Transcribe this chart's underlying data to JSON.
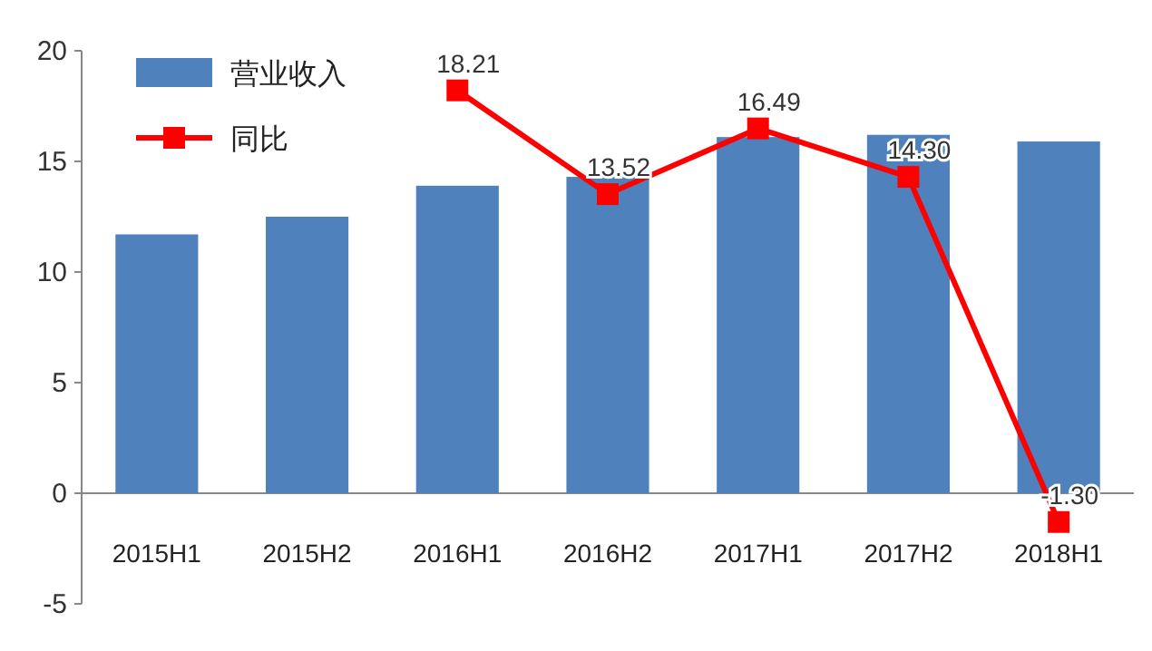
{
  "chart_data": {
    "type": "bar",
    "categories": [
      "2015H1",
      "2015H2",
      "2016H1",
      "2016H2",
      "2017H1",
      "2017H2",
      "2018H1"
    ],
    "series": [
      {
        "name": "营业收入",
        "color": "#4f81bd",
        "values": [
          11.7,
          12.5,
          13.9,
          14.3,
          16.1,
          16.2,
          15.9
        ]
      },
      {
        "name": "同比",
        "type": "line",
        "color": "#ff0000",
        "marker": "square",
        "values": [
          null,
          null,
          18.21,
          13.52,
          16.49,
          14.3,
          -1.3
        ],
        "value_labels": [
          null,
          null,
          "18.21",
          "13.52",
          "16.49",
          "14.30",
          "-1.30"
        ]
      }
    ],
    "ylim": [
      -5,
      20
    ],
    "yticks": [
      -5,
      0,
      5,
      10,
      15,
      20
    ],
    "legend": "top left"
  }
}
